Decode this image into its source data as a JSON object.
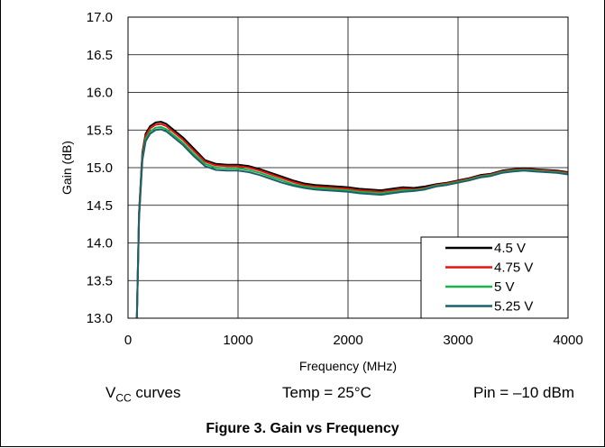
{
  "chart_data": {
    "type": "line",
    "title": "",
    "xlabel": "Frequency (MHz)",
    "ylabel": "Gain (dB)",
    "xlim": [
      0,
      4000
    ],
    "ylim": [
      13.0,
      17.0
    ],
    "xticks": [
      "0",
      "1000",
      "2000",
      "3000",
      "4000"
    ],
    "yticks": [
      "13.0",
      "13.5",
      "14.0",
      "14.5",
      "15.0",
      "15.5",
      "16.0",
      "16.5",
      "17.0"
    ],
    "grid": true,
    "legend_position": "bottom-right",
    "x": [
      80,
      100,
      130,
      160,
      200,
      250,
      300,
      350,
      400,
      500,
      600,
      700,
      800,
      900,
      1000,
      1100,
      1200,
      1300,
      1400,
      1500,
      1600,
      1700,
      1800,
      1900,
      2000,
      2100,
      2200,
      2300,
      2400,
      2500,
      2600,
      2700,
      2800,
      2900,
      3000,
      3100,
      3200,
      3300,
      3400,
      3500,
      3600,
      3700,
      3800,
      3900,
      4000
    ],
    "series": [
      {
        "name": "4.5 V",
        "color": "#000000",
        "values": [
          13.0,
          14.4,
          15.2,
          15.45,
          15.55,
          15.6,
          15.61,
          15.58,
          15.52,
          15.4,
          15.25,
          15.1,
          15.05,
          15.04,
          15.04,
          15.02,
          14.98,
          14.93,
          14.88,
          14.83,
          14.79,
          14.77,
          14.76,
          14.75,
          14.74,
          14.72,
          14.71,
          14.7,
          14.72,
          14.74,
          14.73,
          14.75,
          14.78,
          14.8,
          14.83,
          14.86,
          14.9,
          14.92,
          14.96,
          14.98,
          14.99,
          14.98,
          14.97,
          14.96,
          14.94
        ]
      },
      {
        "name": "4.75 V",
        "color": "#e8120c",
        "values": [
          13.0,
          14.38,
          15.17,
          15.42,
          15.52,
          15.57,
          15.58,
          15.55,
          15.49,
          15.37,
          15.22,
          15.08,
          15.03,
          15.02,
          15.02,
          15.0,
          14.96,
          14.91,
          14.86,
          14.81,
          14.77,
          14.75,
          14.74,
          14.73,
          14.72,
          14.7,
          14.69,
          14.68,
          14.7,
          14.72,
          14.71,
          14.73,
          14.77,
          14.79,
          14.82,
          14.85,
          14.89,
          14.91,
          14.95,
          14.97,
          14.98,
          14.97,
          14.96,
          14.95,
          14.93
        ]
      },
      {
        "name": "5 V",
        "color": "#19b24a",
        "values": [
          13.0,
          14.35,
          15.13,
          15.38,
          15.48,
          15.53,
          15.54,
          15.51,
          15.45,
          15.33,
          15.18,
          15.05,
          15.0,
          14.99,
          14.99,
          14.97,
          14.93,
          14.88,
          14.83,
          14.78,
          14.75,
          14.73,
          14.72,
          14.71,
          14.7,
          14.68,
          14.67,
          14.66,
          14.68,
          14.7,
          14.7,
          14.72,
          14.76,
          14.78,
          14.81,
          14.84,
          14.88,
          14.9,
          14.94,
          14.96,
          14.97,
          14.96,
          14.95,
          14.94,
          14.92
        ]
      },
      {
        "name": "5.25 V",
        "color": "#1f5f6b",
        "values": [
          13.0,
          14.32,
          15.1,
          15.35,
          15.45,
          15.5,
          15.51,
          15.48,
          15.42,
          15.3,
          15.15,
          15.02,
          14.97,
          14.96,
          14.96,
          14.94,
          14.9,
          14.85,
          14.8,
          14.76,
          14.73,
          14.71,
          14.7,
          14.69,
          14.68,
          14.66,
          14.65,
          14.64,
          14.66,
          14.68,
          14.69,
          14.71,
          14.75,
          14.77,
          14.8,
          14.83,
          14.87,
          14.89,
          14.93,
          14.95,
          14.96,
          14.95,
          14.94,
          14.93,
          14.91
        ]
      }
    ]
  },
  "notes": {
    "vcc_prefix": "V",
    "vcc_sub": "CC",
    "vcc_suffix": " curves",
    "temp": "Temp = 25°C",
    "pin": "Pin = –10 dBm"
  },
  "caption": "Figure 3.  Gain vs Frequency"
}
